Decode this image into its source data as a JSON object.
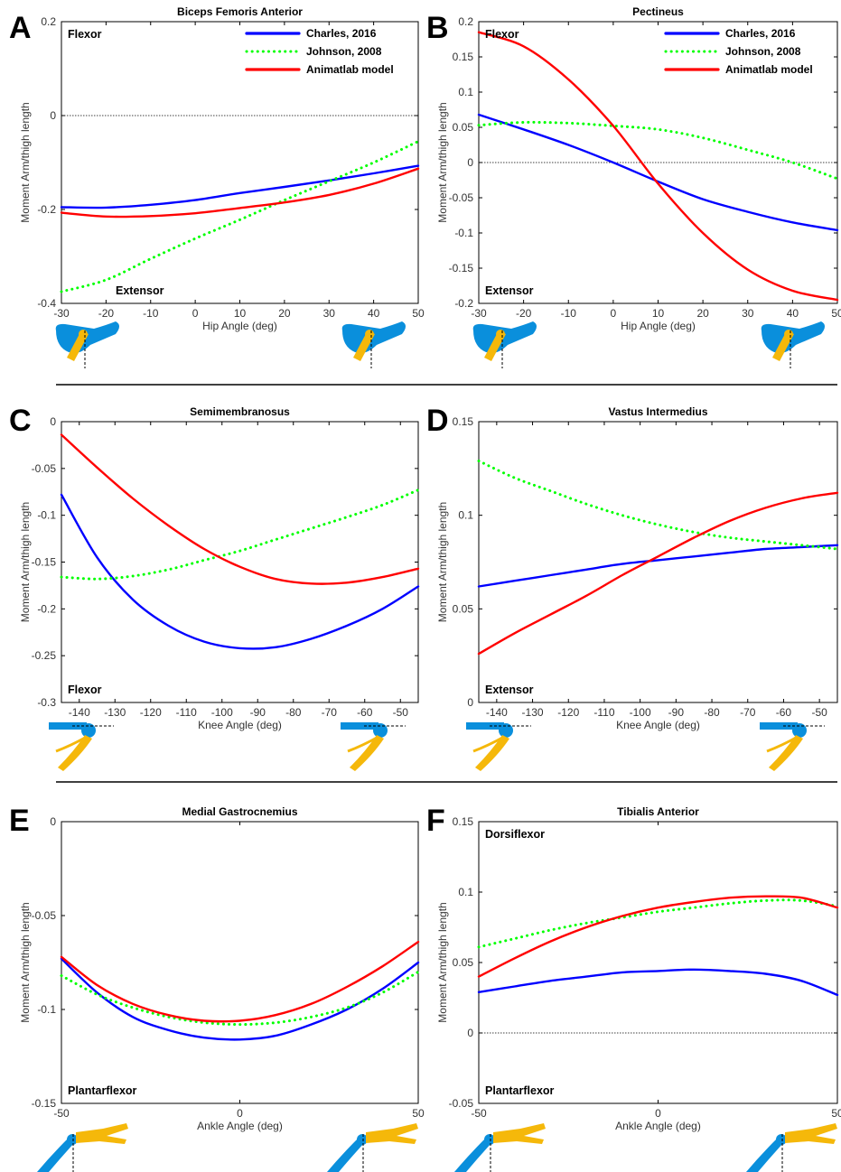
{
  "figure": {
    "series_styles": {
      "charles": {
        "color": "#0000ff",
        "dash": "solid"
      },
      "johnson": {
        "color": "#00ff00",
        "dash": "dotted"
      },
      "animatlab": {
        "color": "#ff0000",
        "dash": "solid"
      }
    },
    "insets": {
      "blue": "#0a8fdc",
      "gold": "#f5b80a"
    }
  },
  "chart_data": [
    {
      "type": "line",
      "letter": "A",
      "title": "Biceps Femoris Anterior",
      "xlabel": "Hip Angle (deg)",
      "ylabel": "Moment Arm/thigh length",
      "xlim": [
        -30,
        50
      ],
      "ylim": [
        -0.4,
        0.2
      ],
      "xticks": [
        -30,
        -20,
        -10,
        0,
        10,
        20,
        30,
        40,
        50
      ],
      "yticks": [
        -0.4,
        -0.2,
        0,
        0.2
      ],
      "ytick_labels": [
        "-0.4",
        "-0.2",
        "0",
        "0.2"
      ],
      "zero_line": true,
      "legend": {
        "placement": "top-right",
        "entries": [
          "Charles, 2016",
          "Johnson, 2008",
          "Animatlab model"
        ]
      },
      "annotations": {
        "top": "Flexor",
        "bottom": "Extensor"
      },
      "inset": "hip",
      "series": [
        {
          "name": "Charles, 2016",
          "style": "charles",
          "x": [
            -30,
            -20,
            -10,
            0,
            10,
            20,
            30,
            40,
            50
          ],
          "y": [
            -0.195,
            -0.196,
            -0.19,
            -0.18,
            -0.165,
            -0.152,
            -0.138,
            -0.123,
            -0.107
          ]
        },
        {
          "name": "Johnson, 2008",
          "style": "johnson",
          "x": [
            -30,
            -20,
            -10,
            0,
            10,
            20,
            30,
            40,
            50
          ],
          "y": [
            -0.375,
            -0.35,
            -0.305,
            -0.262,
            -0.222,
            -0.18,
            -0.14,
            -0.1,
            -0.055
          ]
        },
        {
          "name": "Animatlab model",
          "style": "animatlab",
          "x": [
            -30,
            -20,
            -10,
            0,
            10,
            20,
            30,
            40,
            50
          ],
          "y": [
            -0.207,
            -0.215,
            -0.214,
            -0.208,
            -0.197,
            -0.185,
            -0.169,
            -0.145,
            -0.113
          ]
        }
      ]
    },
    {
      "type": "line",
      "letter": "B",
      "title": "Pectineus",
      "xlabel": "Hip Angle (deg)",
      "ylabel": "Moment Arm/thigh length",
      "xlim": [
        -30,
        50
      ],
      "ylim": [
        -0.2,
        0.2
      ],
      "xticks": [
        -30,
        -20,
        -10,
        0,
        10,
        20,
        30,
        40,
        50
      ],
      "yticks": [
        -0.2,
        -0.15,
        -0.1,
        -0.05,
        0,
        0.05,
        0.1,
        0.15,
        0.2
      ],
      "ytick_labels": [
        "-0.2",
        "-0.15",
        "-0.1",
        "-0.05",
        "0",
        "0.05",
        "0.1",
        "0.15",
        "0.2"
      ],
      "zero_line": true,
      "legend": {
        "placement": "top-right",
        "entries": [
          "Charles, 2016",
          "Johnson, 2008",
          "Animatlab model"
        ]
      },
      "annotations": {
        "top": "Flexor",
        "bottom": "Extensor"
      },
      "inset": "hip",
      "series": [
        {
          "name": "Charles, 2016",
          "style": "charles",
          "x": [
            -30,
            -20,
            -10,
            0,
            10,
            20,
            30,
            40,
            50
          ],
          "y": [
            0.068,
            0.047,
            0.025,
            0.0,
            -0.027,
            -0.052,
            -0.07,
            -0.085,
            -0.096
          ]
        },
        {
          "name": "Johnson, 2008",
          "style": "johnson",
          "x": [
            -30,
            -20,
            -10,
            0,
            10,
            20,
            30,
            40,
            50
          ],
          "y": [
            0.053,
            0.057,
            0.056,
            0.052,
            0.047,
            0.035,
            0.018,
            0.0,
            -0.023
          ]
        },
        {
          "name": "Animatlab model",
          "style": "animatlab",
          "x": [
            -30,
            -20,
            -10,
            0,
            10,
            20,
            30,
            40,
            50
          ],
          "y": [
            0.185,
            0.165,
            0.118,
            0.052,
            -0.03,
            -0.1,
            -0.152,
            -0.182,
            -0.195
          ]
        }
      ]
    },
    {
      "type": "line",
      "letter": "C",
      "title": "Semimembranosus",
      "xlabel": "Knee Angle (deg)",
      "ylabel": "Moment Arm/thigh length",
      "xlim": [
        -145,
        -45
      ],
      "ylim": [
        -0.3,
        0
      ],
      "xticks": [
        -140,
        -130,
        -120,
        -110,
        -100,
        -90,
        -80,
        -70,
        -60,
        -50
      ],
      "yticks": [
        -0.3,
        -0.25,
        -0.2,
        -0.15,
        -0.1,
        -0.05,
        0
      ],
      "ytick_labels": [
        "-0.3",
        "-0.25",
        "-0.2",
        "-0.15",
        "-0.1",
        "-0.05",
        "0"
      ],
      "zero_line": false,
      "annotations": {
        "top": "",
        "bottom": "Flexor"
      },
      "inset": "knee",
      "series": [
        {
          "name": "Charles, 2016",
          "style": "charles",
          "x": [
            -145,
            -135,
            -125,
            -115,
            -105,
            -95,
            -85,
            -75,
            -65,
            -55,
            -45
          ],
          "y": [
            -0.078,
            -0.145,
            -0.19,
            -0.218,
            -0.235,
            -0.242,
            -0.241,
            -0.232,
            -0.218,
            -0.2,
            -0.176
          ]
        },
        {
          "name": "Johnson, 2008",
          "style": "johnson",
          "x": [
            -145,
            -135,
            -125,
            -115,
            -105,
            -95,
            -85,
            -75,
            -65,
            -55,
            -45
          ],
          "y": [
            -0.166,
            -0.168,
            -0.165,
            -0.158,
            -0.148,
            -0.138,
            -0.126,
            -0.114,
            -0.102,
            -0.089,
            -0.073
          ]
        },
        {
          "name": "Animatlab model",
          "style": "animatlab",
          "x": [
            -145,
            -135,
            -125,
            -115,
            -105,
            -95,
            -85,
            -75,
            -65,
            -55,
            -45
          ],
          "y": [
            -0.014,
            -0.049,
            -0.082,
            -0.111,
            -0.136,
            -0.155,
            -0.168,
            -0.173,
            -0.172,
            -0.166,
            -0.157
          ]
        }
      ]
    },
    {
      "type": "line",
      "letter": "D",
      "title": "Vastus Intermedius",
      "xlabel": "Knee Angle (deg)",
      "ylabel": "Moment Arm/thigh length",
      "xlim": [
        -145,
        -45
      ],
      "ylim": [
        0,
        0.15
      ],
      "xticks": [
        -140,
        -130,
        -120,
        -110,
        -100,
        -90,
        -80,
        -70,
        -60,
        -50
      ],
      "yticks": [
        0,
        0.05,
        0.1,
        0.15
      ],
      "ytick_labels": [
        "0",
        "0.05",
        "0.1",
        "0.15"
      ],
      "zero_line": false,
      "annotations": {
        "top": "",
        "bottom": "Extensor"
      },
      "inset": "knee",
      "series": [
        {
          "name": "Charles, 2016",
          "style": "charles",
          "x": [
            -145,
            -135,
            -125,
            -115,
            -105,
            -95,
            -85,
            -75,
            -65,
            -55,
            -45
          ],
          "y": [
            0.062,
            0.065,
            0.068,
            0.071,
            0.074,
            0.076,
            0.078,
            0.08,
            0.082,
            0.083,
            0.084
          ]
        },
        {
          "name": "Johnson, 2008",
          "style": "johnson",
          "x": [
            -145,
            -135,
            -125,
            -115,
            -105,
            -95,
            -85,
            -75,
            -65,
            -55,
            -45
          ],
          "y": [
            0.129,
            0.12,
            0.113,
            0.106,
            0.1,
            0.095,
            0.091,
            0.088,
            0.086,
            0.084,
            0.082
          ]
        },
        {
          "name": "Animatlab model",
          "style": "animatlab",
          "x": [
            -145,
            -135,
            -125,
            -115,
            -105,
            -95,
            -85,
            -75,
            -65,
            -55,
            -45
          ],
          "y": [
            0.026,
            0.037,
            0.047,
            0.057,
            0.068,
            0.078,
            0.088,
            0.097,
            0.104,
            0.109,
            0.112
          ]
        }
      ]
    },
    {
      "type": "line",
      "letter": "E",
      "title": "Medial Gastrocnemius",
      "xlabel": "Ankle Angle (deg)",
      "ylabel": "Moment Arm/thigh length",
      "xlim": [
        -50,
        50
      ],
      "ylim": [
        -0.15,
        0
      ],
      "xticks": [
        -50,
        0,
        50
      ],
      "yticks": [
        -0.15,
        -0.1,
        -0.05,
        0
      ],
      "ytick_labels": [
        "-0.15",
        "-0.1",
        "-0.05",
        "0"
      ],
      "zero_line": false,
      "annotations": {
        "top": "",
        "bottom": "Plantarflexor"
      },
      "inset": "ankle",
      "series": [
        {
          "name": "Charles, 2016",
          "style": "charles",
          "x": [
            -50,
            -40,
            -30,
            -20,
            -10,
            0,
            10,
            20,
            30,
            40,
            50
          ],
          "y": [
            -0.073,
            -0.091,
            -0.104,
            -0.111,
            -0.115,
            -0.116,
            -0.114,
            -0.108,
            -0.1,
            -0.089,
            -0.075
          ]
        },
        {
          "name": "Johnson, 2008",
          "style": "johnson",
          "x": [
            -50,
            -40,
            -30,
            -20,
            -10,
            0,
            10,
            20,
            30,
            40,
            50
          ],
          "y": [
            -0.082,
            -0.092,
            -0.099,
            -0.104,
            -0.107,
            -0.108,
            -0.107,
            -0.104,
            -0.099,
            -0.091,
            -0.08
          ]
        },
        {
          "name": "Animatlab model",
          "style": "animatlab",
          "x": [
            -50,
            -40,
            -30,
            -20,
            -10,
            0,
            10,
            20,
            30,
            40,
            50
          ],
          "y": [
            -0.072,
            -0.087,
            -0.097,
            -0.103,
            -0.106,
            -0.106,
            -0.103,
            -0.097,
            -0.088,
            -0.077,
            -0.064
          ]
        }
      ]
    },
    {
      "type": "line",
      "letter": "F",
      "title": "Tibialis Anterior",
      "xlabel": "Ankle Angle (deg)",
      "ylabel": "Moment Arm/thigh length",
      "xlim": [
        -50,
        50
      ],
      "ylim": [
        -0.05,
        0.15
      ],
      "xticks": [
        -50,
        0,
        50
      ],
      "yticks": [
        -0.05,
        0,
        0.05,
        0.1,
        0.15
      ],
      "ytick_labels": [
        "-0.05",
        "0",
        "0.05",
        "0.1",
        "0.15"
      ],
      "zero_line": true,
      "annotations": {
        "top": "Dorsiflexor",
        "bottom": "Plantarflexor"
      },
      "inset": "ankle",
      "series": [
        {
          "name": "Charles, 2016",
          "style": "charles",
          "x": [
            -50,
            -40,
            -30,
            -20,
            -10,
            0,
            10,
            20,
            30,
            40,
            50
          ],
          "y": [
            0.029,
            0.033,
            0.037,
            0.04,
            0.043,
            0.044,
            0.045,
            0.044,
            0.042,
            0.037,
            0.027
          ]
        },
        {
          "name": "Johnson, 2008",
          "style": "johnson",
          "x": [
            -50,
            -40,
            -30,
            -20,
            -10,
            0,
            10,
            20,
            30,
            40,
            50
          ],
          "y": [
            0.061,
            0.067,
            0.073,
            0.078,
            0.082,
            0.086,
            0.089,
            0.092,
            0.094,
            0.094,
            0.09
          ]
        },
        {
          "name": "Animatlab model",
          "style": "animatlab",
          "x": [
            -50,
            -40,
            -30,
            -20,
            -10,
            0,
            10,
            20,
            30,
            40,
            50
          ],
          "y": [
            0.04,
            0.053,
            0.065,
            0.075,
            0.083,
            0.089,
            0.093,
            0.096,
            0.097,
            0.096,
            0.089
          ]
        }
      ]
    }
  ]
}
